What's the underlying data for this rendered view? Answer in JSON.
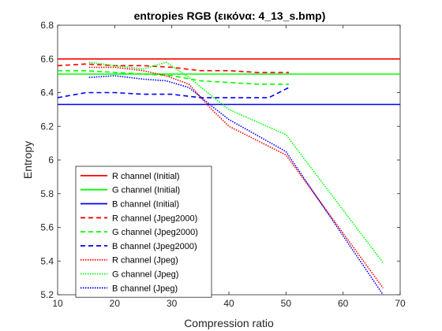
{
  "chart_data": {
    "type": "line",
    "title": "entropies RGB (εικόνα: 4_13_s.bmp)",
    "xlabel": "Compression ratio",
    "ylabel": "Entropy",
    "xlim": [
      10,
      70
    ],
    "ylim": [
      5.2,
      6.8
    ],
    "xticks": [
      "10",
      "20",
      "30",
      "40",
      "50",
      "60",
      "70"
    ],
    "yticks": [
      "5.2",
      "5.4",
      "5.6",
      "5.8",
      "6",
      "6.2",
      "6.4",
      "6.6",
      "6.8"
    ],
    "grid": false,
    "legend_position": "bottom-left",
    "series": [
      {
        "name": "R channel (Initial)",
        "color": "#ff0000",
        "style": "solid",
        "x": [
          10,
          70
        ],
        "y": [
          6.6,
          6.6
        ]
      },
      {
        "name": "G channel (Initial)",
        "color": "#00ff00",
        "style": "solid",
        "x": [
          10,
          70
        ],
        "y": [
          6.51,
          6.51
        ]
      },
      {
        "name": "B channel (Initial)",
        "color": "#0000ff",
        "style": "solid",
        "x": [
          10,
          70
        ],
        "y": [
          6.33,
          6.33
        ]
      },
      {
        "name": "R channel (Jpeg2000)",
        "color": "#ff0000",
        "style": "dashed",
        "x": [
          10,
          15,
          20,
          25,
          30,
          35,
          40,
          45,
          50.5
        ],
        "y": [
          6.56,
          6.57,
          6.56,
          6.56,
          6.55,
          6.53,
          6.53,
          6.52,
          6.52
        ]
      },
      {
        "name": "G channel (Jpeg2000)",
        "color": "#00ff00",
        "style": "dashed",
        "x": [
          10,
          15,
          20,
          25,
          30,
          35,
          40,
          45,
          50.5
        ],
        "y": [
          6.53,
          6.53,
          6.52,
          6.51,
          6.5,
          6.47,
          6.46,
          6.45,
          6.45
        ]
      },
      {
        "name": "B channel (Jpeg2000)",
        "color": "#0000ff",
        "style": "dashed",
        "x": [
          10,
          15,
          20,
          25,
          30,
          35,
          40,
          45,
          47,
          50.5
        ],
        "y": [
          6.37,
          6.4,
          6.4,
          6.39,
          6.39,
          6.37,
          6.37,
          6.37,
          6.37,
          6.43
        ]
      },
      {
        "name": "R channel (Jpeg)",
        "color": "#ff0000",
        "style": "dotted",
        "x": [
          15.5,
          20,
          25,
          29,
          33,
          37,
          40,
          50,
          67
        ],
        "y": [
          6.55,
          6.55,
          6.53,
          6.5,
          6.45,
          6.3,
          6.2,
          6.03,
          5.24
        ]
      },
      {
        "name": "G channel (Jpeg)",
        "color": "#00ff00",
        "style": "dotted",
        "x": [
          15.5,
          20,
          25,
          29,
          33,
          37,
          40,
          50,
          67
        ],
        "y": [
          6.58,
          6.56,
          6.54,
          6.58,
          6.49,
          6.38,
          6.3,
          6.15,
          5.39
        ]
      },
      {
        "name": "B channel (Jpeg)",
        "color": "#0000ff",
        "style": "dotted",
        "x": [
          15.5,
          20,
          25,
          29,
          33,
          37,
          40,
          50,
          67
        ],
        "y": [
          6.49,
          6.5,
          6.48,
          6.47,
          6.43,
          6.32,
          6.24,
          6.05,
          5.2
        ]
      }
    ]
  }
}
